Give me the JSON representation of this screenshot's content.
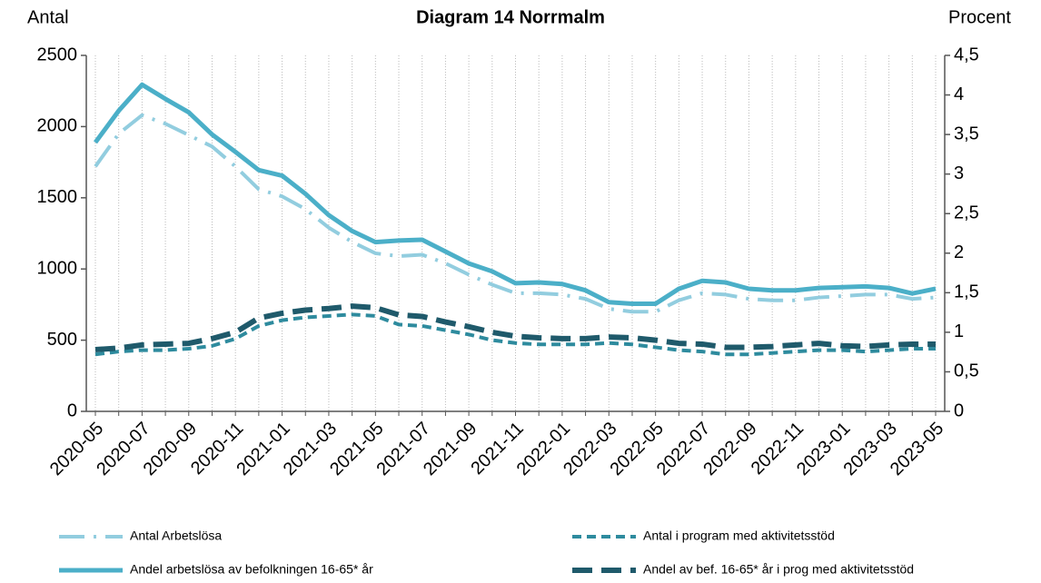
{
  "chart_data": {
    "type": "line",
    "title": "Diagram 14 Norrmalm",
    "y_label": "Antal",
    "y2_label": "Procent",
    "categories": [
      "2020-05",
      null,
      "2020-07",
      null,
      "2020-09",
      null,
      "2020-11",
      null,
      "2021-01",
      null,
      "2021-03",
      null,
      "2021-05",
      null,
      "2021-07",
      null,
      "2021-09",
      null,
      "2021-11",
      null,
      "2022-01",
      null,
      "2022-03",
      null,
      "2022-05",
      null,
      "2022-07",
      null,
      "2022-09",
      null,
      "2022-11",
      null,
      "2023-01",
      null,
      "2023-03",
      null,
      "2023-05"
    ],
    "ylim": [
      0,
      2500
    ],
    "yticks": [
      0,
      500,
      1000,
      1500,
      2000,
      2500
    ],
    "y2lim": [
      0,
      4.5
    ],
    "y2ticks": [
      0,
      {
        "value": 0.5,
        "label": "0,5"
      },
      1,
      {
        "value": 1.5,
        "label": "1,5"
      },
      2,
      {
        "value": 2.5,
        "label": "2,5"
      },
      3,
      {
        "value": 3.5,
        "label": "3,5"
      },
      4,
      {
        "value": 4.5,
        "label": "4,5"
      }
    ],
    "grid": true,
    "legend": "bottom",
    "series": [
      {
        "name": "Antal Arbetslösa",
        "color": "#92cddf",
        "style": "dashdot",
        "axis": "y",
        "values": [
          1720,
          1950,
          2080,
          2020,
          1940,
          1860,
          1720,
          1560,
          1510,
          1420,
          1290,
          1190,
          1110,
          1090,
          1100,
          1040,
          960,
          890,
          830,
          830,
          820,
          790,
          720,
          700,
          700,
          780,
          830,
          820,
          790,
          780,
          780,
          800,
          810,
          820,
          820,
          790,
          800
        ]
      },
      {
        "name": "Antal i program med aktivitetsstöd",
        "color": "#2e8b9e",
        "style": "dashed",
        "axis": "y",
        "values": [
          400,
          420,
          430,
          430,
          440,
          460,
          510,
          600,
          640,
          660,
          670,
          680,
          670,
          610,
          600,
          570,
          540,
          500,
          480,
          470,
          470,
          470,
          480,
          470,
          450,
          430,
          420,
          400,
          400,
          410,
          420,
          430,
          430,
          420,
          430,
          440,
          440
        ]
      },
      {
        "name": "Andel arbetslösa av befolkningen 16-65* år",
        "color": "#4bafc8",
        "style": "solid",
        "axis": "y2",
        "values": [
          3.4,
          3.8,
          4.13,
          3.95,
          3.78,
          3.5,
          3.28,
          3.05,
          2.98,
          2.75,
          2.48,
          2.28,
          2.14,
          2.16,
          2.17,
          2.02,
          1.87,
          1.77,
          1.62,
          1.63,
          1.61,
          1.53,
          1.38,
          1.36,
          1.36,
          1.55,
          1.65,
          1.63,
          1.55,
          1.53,
          1.53,
          1.56,
          1.57,
          1.58,
          1.56,
          1.49,
          1.55
        ]
      },
      {
        "name": "Andel av bef. 16-65* år i prog med aktivitetsstöd",
        "color": "#1f5a6b",
        "style": "longdash",
        "axis": "y2",
        "values": [
          0.78,
          0.8,
          0.84,
          0.85,
          0.86,
          0.92,
          1.0,
          1.18,
          1.24,
          1.28,
          1.3,
          1.33,
          1.31,
          1.22,
          1.2,
          1.13,
          1.07,
          1.0,
          0.95,
          0.93,
          0.92,
          0.92,
          0.94,
          0.93,
          0.9,
          0.86,
          0.85,
          0.81,
          0.81,
          0.82,
          0.84,
          0.86,
          0.83,
          0.82,
          0.84,
          0.85,
          0.85
        ]
      }
    ]
  }
}
